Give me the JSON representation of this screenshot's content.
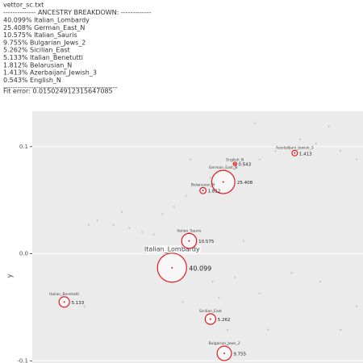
{
  "header": {
    "filename": "vettor_sc.txt",
    "title": "-------------- ANCESTRY BREAKDOWN: -------------",
    "lines": [
      "40.099% Italian_Lombardy",
      "25.408% German_East_N",
      "10.575% Italian_Sauris",
      "9.755% Bulgarian_Jews_2",
      "5.262% Sicilian_East",
      "5.133% Italian_Benetutti",
      "1.812% Belarusian_N",
      "1.413% Azerbaijani_Jewish_3",
      "0.543% English_N"
    ],
    "separator": "-------------------------------------------------",
    "fit_error": "Fit error: 0.015024912315647085"
  },
  "chart_data": {
    "type": "scatter",
    "y_label": "y",
    "ylim": [
      -0.102,
      0.133
    ],
    "xlim": [
      0,
      0.31
    ],
    "yticks": [
      -0.1,
      {
        "value": 0,
        "label": "0.0"
      },
      0.1
    ],
    "grid": true,
    "labels": [
      "Italian_Lombardy",
      "German_East_N",
      "Italian_Sauris",
      "Bulgarian_Jews_2",
      "Sicilian_East",
      "Italian_Benetutti",
      "Belarusian_N",
      "Azerbaijani_Jewish_3",
      "English_N"
    ],
    "values": [
      40.099,
      25.408,
      10.575,
      9.755,
      5.262,
      5.133,
      1.812,
      1.413,
      0.543
    ],
    "x": [
      0.131,
      0.179,
      0.147,
      0.18,
      0.167,
      0.03,
      0.16,
      0.246,
      0.19
    ],
    "y": [
      -0.013,
      0.067,
      0.012,
      -0.093,
      -0.061,
      -0.045,
      0.059,
      0.094,
      0.084
    ],
    "color": "#e31a1c",
    "background_points": {
      "color": "#c8c8c8",
      "x": [
        0.061,
        0.076,
        0.091,
        0.103,
        0.114,
        0.122,
        0.133,
        0.144,
        0.156,
        0.167,
        0.175,
        0.19,
        0.198,
        0.213,
        0.228,
        0.24,
        0.251,
        0.266,
        0.278,
        0.289,
        0.304,
        0.16,
        0.169,
        0.175,
        0.183,
        0.19,
        0.213,
        0.243,
        0.27,
        0.289,
        0.304,
        0.049,
        0.106,
        0.141,
        0.198,
        0.221,
        0.053,
        0.084,
        0.148,
        0.209
      ],
      "y": [
        0.031,
        0.027,
        0.024,
        0.02,
        0.018,
        0.037,
        0.044,
        0.054,
        0.064,
        0.071,
        0.077,
        0.079,
        0.084,
        0.088,
        0.096,
        0.1,
        0.107,
        0.103,
        0.119,
        0.096,
        0.088,
        -0.011,
        -0.026,
        -0.041,
        -0.071,
        -0.022,
        -0.037,
        -0.018,
        -0.026,
        -0.071,
        -0.049,
        -0.049,
        0.001,
        -0.045,
        0.012,
        -0.071,
        0.027,
        0.039,
        0.088,
        0.122
      ]
    }
  }
}
